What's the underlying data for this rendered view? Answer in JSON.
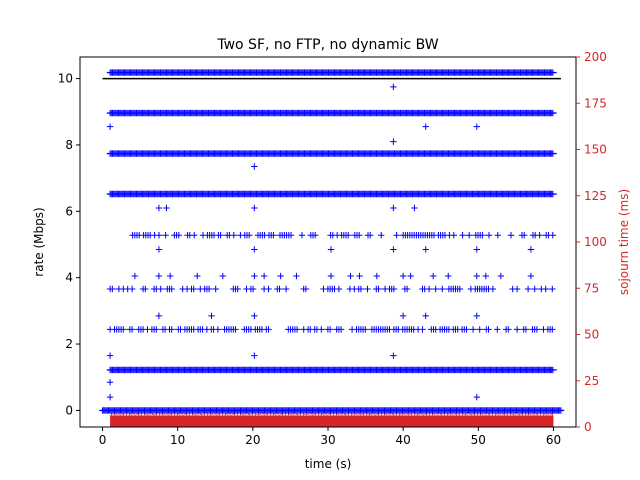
{
  "chart_data": {
    "type": "scatter",
    "title": "Two SF, no FTP, no dynamic BW",
    "xlabel": "time (s)",
    "ylabel": "rate (Mbps)",
    "y2label": "sojourn time (ms)",
    "xlim": [
      -3,
      63
    ],
    "ylim": [
      -0.5,
      10.65
    ],
    "y2lim": [
      0,
      200
    ],
    "xticks": [
      "0",
      "10",
      "20",
      "30",
      "40",
      "50",
      "60"
    ],
    "yticks": [
      "0",
      "2",
      "4",
      "6",
      "8",
      "10"
    ],
    "y2ticks": [
      "0",
      "25",
      "50",
      "75",
      "100",
      "125",
      "150",
      "175",
      "200"
    ],
    "grid": false,
    "colors": {
      "rate": "#0000ff",
      "reference": "#000000",
      "sojourn": "#d62728",
      "right_axis": "#d62728"
    },
    "reference_line": {
      "y": 10,
      "x": [
        0,
        61
      ]
    },
    "dense_bands": [
      {
        "y": 0.0,
        "x": [
          0,
          61
        ]
      },
      {
        "y": 1.22,
        "x": [
          1,
          60
        ]
      },
      {
        "y": 6.52,
        "x": [
          1,
          60
        ]
      },
      {
        "y": 7.74,
        "x": [
          1,
          60
        ]
      },
      {
        "y": 8.96,
        "x": [
          1,
          60
        ]
      },
      {
        "y": 10.18,
        "x": [
          1,
          60
        ]
      }
    ],
    "sparse_bands": [
      {
        "y": 2.44,
        "x": [
          1,
          60
        ],
        "density": 0.55
      },
      {
        "y": 3.66,
        "x": [
          1,
          60
        ],
        "density": 0.35
      },
      {
        "y": 5.28,
        "x": [
          4,
          60
        ],
        "density": 0.5
      }
    ],
    "outliers": [
      {
        "x": 1.0,
        "y": 8.55
      },
      {
        "x": 1.0,
        "y": 1.65
      },
      {
        "x": 1.0,
        "y": 0.85
      },
      {
        "x": 1.0,
        "y": 0.4
      },
      {
        "x": 4.3,
        "y": 4.05
      },
      {
        "x": 7.5,
        "y": 4.05
      },
      {
        "x": 7.5,
        "y": 2.85
      },
      {
        "x": 7.5,
        "y": 4.85
      },
      {
        "x": 7.5,
        "y": 6.1
      },
      {
        "x": 8.5,
        "y": 6.1
      },
      {
        "x": 9.0,
        "y": 4.05
      },
      {
        "x": 12.6,
        "y": 4.05
      },
      {
        "x": 14.5,
        "y": 2.85
      },
      {
        "x": 16.0,
        "y": 4.05
      },
      {
        "x": 20.2,
        "y": 7.35
      },
      {
        "x": 20.2,
        "y": 6.1
      },
      {
        "x": 20.2,
        "y": 4.85
      },
      {
        "x": 20.2,
        "y": 4.05
      },
      {
        "x": 20.2,
        "y": 2.85
      },
      {
        "x": 20.2,
        "y": 1.65
      },
      {
        "x": 21.5,
        "y": 4.05
      },
      {
        "x": 23.7,
        "y": 4.05
      },
      {
        "x": 25.8,
        "y": 4.05
      },
      {
        "x": 30.4,
        "y": 4.85
      },
      {
        "x": 30.4,
        "y": 4.05
      },
      {
        "x": 33.0,
        "y": 4.05
      },
      {
        "x": 34.2,
        "y": 4.05
      },
      {
        "x": 36.5,
        "y": 4.05
      },
      {
        "x": 38.7,
        "y": 9.75
      },
      {
        "x": 38.7,
        "y": 8.1
      },
      {
        "x": 38.7,
        "y": 6.1
      },
      {
        "x": 38.7,
        "y": 4.85
      },
      {
        "x": 38.7,
        "y": 1.65
      },
      {
        "x": 40.0,
        "y": 4.05
      },
      {
        "x": 40.0,
        "y": 2.85
      },
      {
        "x": 41.0,
        "y": 4.05
      },
      {
        "x": 41.5,
        "y": 6.1
      },
      {
        "x": 43.0,
        "y": 8.55
      },
      {
        "x": 43.0,
        "y": 4.85
      },
      {
        "x": 43.0,
        "y": 2.85
      },
      {
        "x": 44.0,
        "y": 4.05
      },
      {
        "x": 46.0,
        "y": 4.05
      },
      {
        "x": 49.8,
        "y": 8.55
      },
      {
        "x": 49.8,
        "y": 4.85
      },
      {
        "x": 49.8,
        "y": 4.05
      },
      {
        "x": 49.8,
        "y": 2.85
      },
      {
        "x": 49.8,
        "y": 0.4
      },
      {
        "x": 51.0,
        "y": 4.05
      },
      {
        "x": 53.0,
        "y": 4.05
      },
      {
        "x": 57.0,
        "y": 4.85
      },
      {
        "x": 57.0,
        "y": 4.05
      }
    ],
    "sojourn_band": {
      "x": [
        1,
        60
      ],
      "y2": [
        0,
        6
      ]
    }
  }
}
